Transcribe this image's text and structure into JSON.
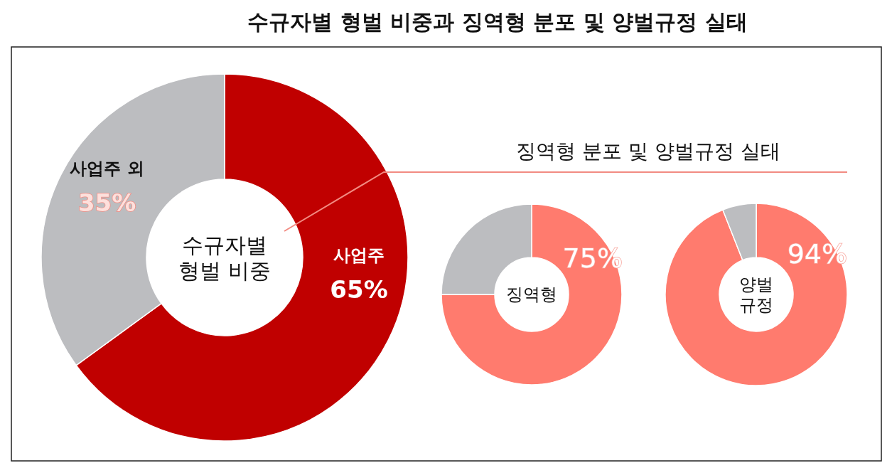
{
  "chart_data": [
    {
      "type": "donut",
      "title": "수규자별 형벌 비중과 징역형 분포 및 양벌규정 실태",
      "categories": [
        "사업주",
        "사업주 외"
      ],
      "values": [
        65,
        35
      ],
      "colors": [
        "#c00000",
        "#bcbdc0"
      ],
      "value_labels": [
        "65%",
        "35%"
      ],
      "annotations": [
        "수규자별 형벌 비중"
      ]
    },
    {
      "type": "donut",
      "title": "징역형 분포 및 양벌규정 실태",
      "categories": [
        null,
        null
      ],
      "values": [
        75,
        25
      ],
      "colors": [
        "#ff7b6e",
        "#bcbdc0"
      ],
      "value_labels": [
        "75%",
        null
      ],
      "annotations": [
        "징역형"
      ]
    },
    {
      "type": "donut",
      "categories": [
        null,
        null
      ],
      "values": [
        94,
        6
      ],
      "colors": [
        "#ff7b6e",
        "#bcbdc0"
      ],
      "value_labels": [
        "94%",
        null
      ],
      "annotations": [
        "양벌 규정"
      ]
    }
  ]
}
